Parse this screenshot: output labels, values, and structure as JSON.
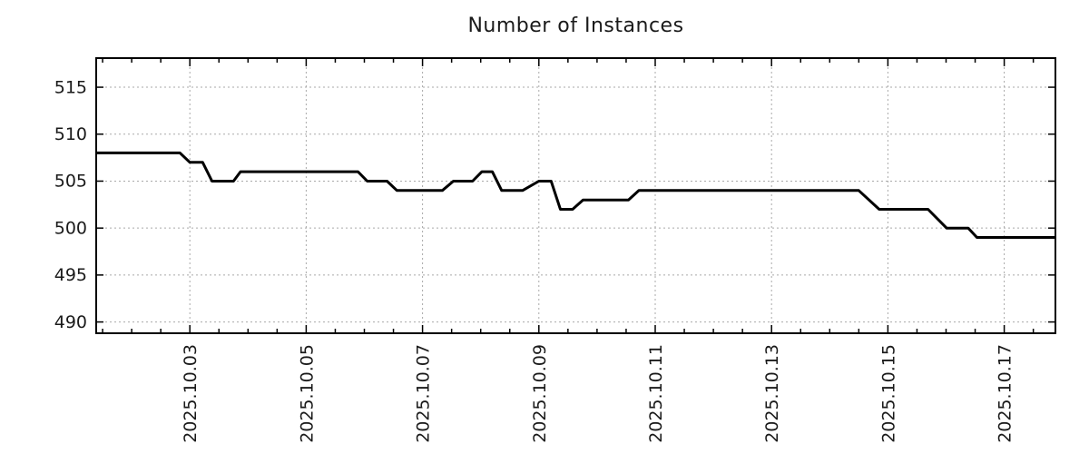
{
  "chart_data": {
    "type": "line",
    "title": "Number of Instances",
    "xlabel": "",
    "ylabel": "",
    "x_unit": "date (fractional day of October 2025)",
    "x_range": [
      1.39,
      17.88
    ],
    "y_range": [
      488.8,
      518.1
    ],
    "y_ticks": [
      490,
      495,
      500,
      505,
      510,
      515
    ],
    "x_major_ticks": [
      {
        "value": 3,
        "label": "2025.10.03"
      },
      {
        "value": 5,
        "label": "2025.10.05"
      },
      {
        "value": 7,
        "label": "2025.10.07"
      },
      {
        "value": 9,
        "label": "2025.10.09"
      },
      {
        "value": 11,
        "label": "2025.10.11"
      },
      {
        "value": 13,
        "label": "2025.10.13"
      },
      {
        "value": 15,
        "label": "2025.10.15"
      },
      {
        "value": 17,
        "label": "2025.10.17"
      }
    ],
    "x_minor_step": 0.5,
    "grid": "dotted",
    "legend": "none",
    "line_color": "#000000",
    "grid_color": "#a9a9a9",
    "series": [
      {
        "name": "instances",
        "color": "#000000",
        "points": [
          [
            1.39,
            508
          ],
          [
            2.83,
            508
          ],
          [
            3.0,
            507
          ],
          [
            3.22,
            507
          ],
          [
            3.38,
            505
          ],
          [
            3.75,
            505
          ],
          [
            3.87,
            506
          ],
          [
            5.89,
            506
          ],
          [
            6.05,
            505
          ],
          [
            6.39,
            505
          ],
          [
            6.56,
            504
          ],
          [
            7.34,
            504
          ],
          [
            7.53,
            505
          ],
          [
            7.86,
            505
          ],
          [
            8.02,
            506
          ],
          [
            8.2,
            506
          ],
          [
            8.36,
            504
          ],
          [
            8.72,
            504
          ],
          [
            9.0,
            505
          ],
          [
            9.21,
            505
          ],
          [
            9.37,
            502
          ],
          [
            9.58,
            502
          ],
          [
            9.76,
            503
          ],
          [
            10.54,
            503
          ],
          [
            10.72,
            504
          ],
          [
            14.5,
            504
          ],
          [
            14.85,
            502
          ],
          [
            15.69,
            502
          ],
          [
            16.01,
            500
          ],
          [
            16.38,
            500
          ],
          [
            16.53,
            499
          ],
          [
            17.88,
            499
          ]
        ]
      }
    ]
  }
}
